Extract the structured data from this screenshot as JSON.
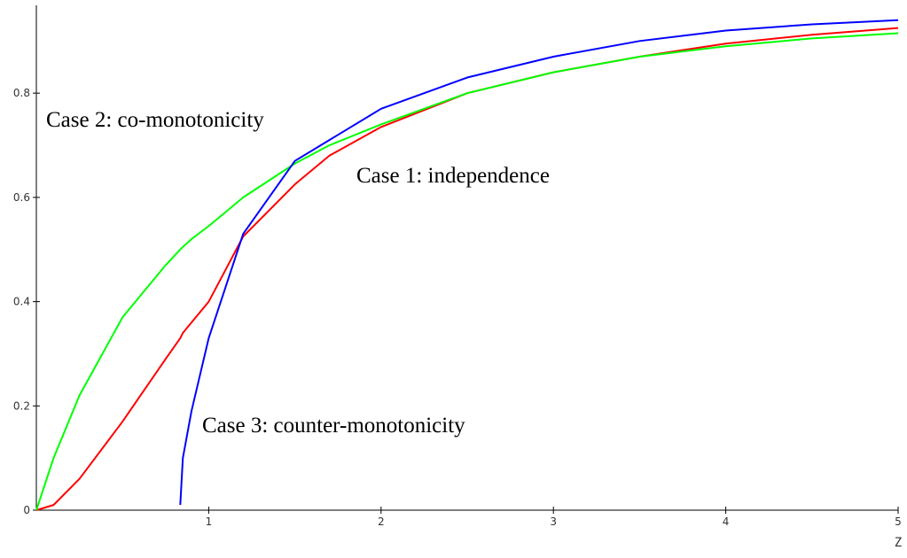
{
  "chart_data": {
    "type": "line",
    "x": [
      0,
      0.1,
      0.25,
      0.5,
      0.75,
      0.835,
      0.85,
      0.9,
      1,
      1.2,
      1.5,
      1.7,
      2,
      2.5,
      3,
      3.5,
      4,
      4.5,
      5
    ],
    "series": [
      {
        "name": "Case 1: independence",
        "color": "#ff0000",
        "values": [
          0,
          0.01,
          0.06,
          0.17,
          0.29,
          0.33,
          0.34,
          0.36,
          0.4,
          0.525,
          0.625,
          0.68,
          0.735,
          0.8,
          0.84,
          0.87,
          0.895,
          0.912,
          0.925
        ]
      },
      {
        "name": "Case 2: co-monotonicity",
        "color": "#00ff00",
        "values": [
          0,
          0.1,
          0.22,
          0.37,
          0.47,
          0.5,
          0.505,
          0.52,
          0.545,
          0.6,
          0.665,
          0.7,
          0.74,
          0.8,
          0.84,
          0.87,
          0.89,
          0.905,
          0.915
        ]
      },
      {
        "name": "Case 3: counter-monotonicity",
        "color": "#0000ff",
        "values": [
          null,
          null,
          null,
          null,
          null,
          0.01,
          0.1,
          0.19,
          0.33,
          0.53,
          0.67,
          0.71,
          0.77,
          0.83,
          0.87,
          0.9,
          0.92,
          0.932,
          0.94
        ]
      }
    ],
    "xlabel": "Z",
    "xlim": [
      0,
      5
    ],
    "ylim": [
      0,
      0.96
    ],
    "xticks": [
      1,
      2,
      3,
      4,
      5
    ],
    "yticks": [
      0,
      0.2,
      0.4,
      0.6,
      0.8
    ]
  }
}
